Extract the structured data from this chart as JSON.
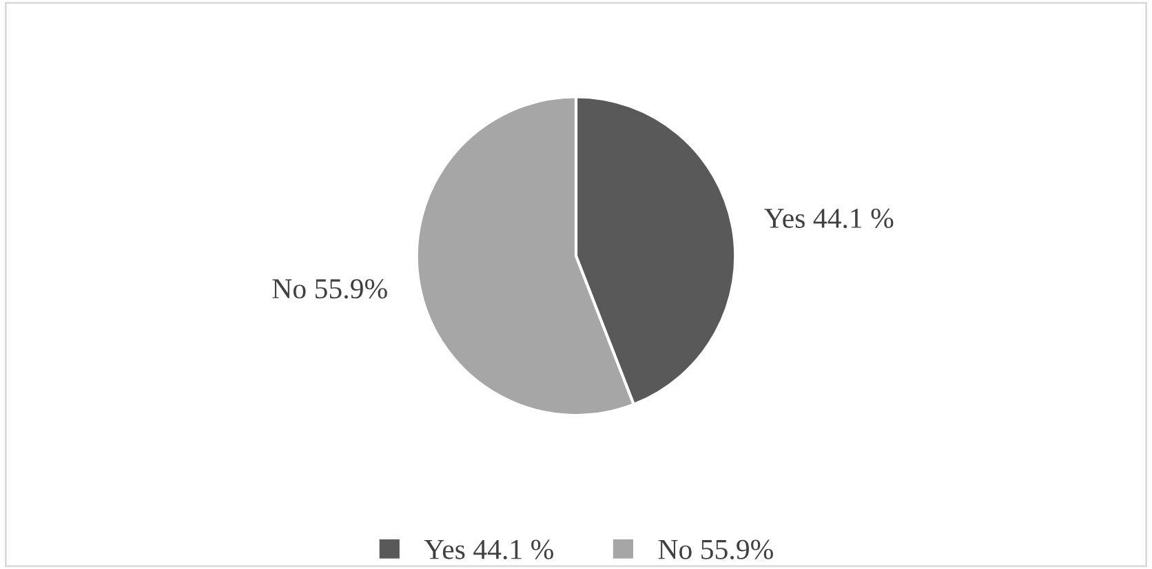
{
  "chart_data": {
    "type": "pie",
    "categories": [
      "Yes 44.1 %",
      "No 55.9%"
    ],
    "values": [
      44.1,
      55.9
    ],
    "colors": [
      "#595959",
      "#a6a6a6"
    ],
    "legend": "bottom"
  }
}
